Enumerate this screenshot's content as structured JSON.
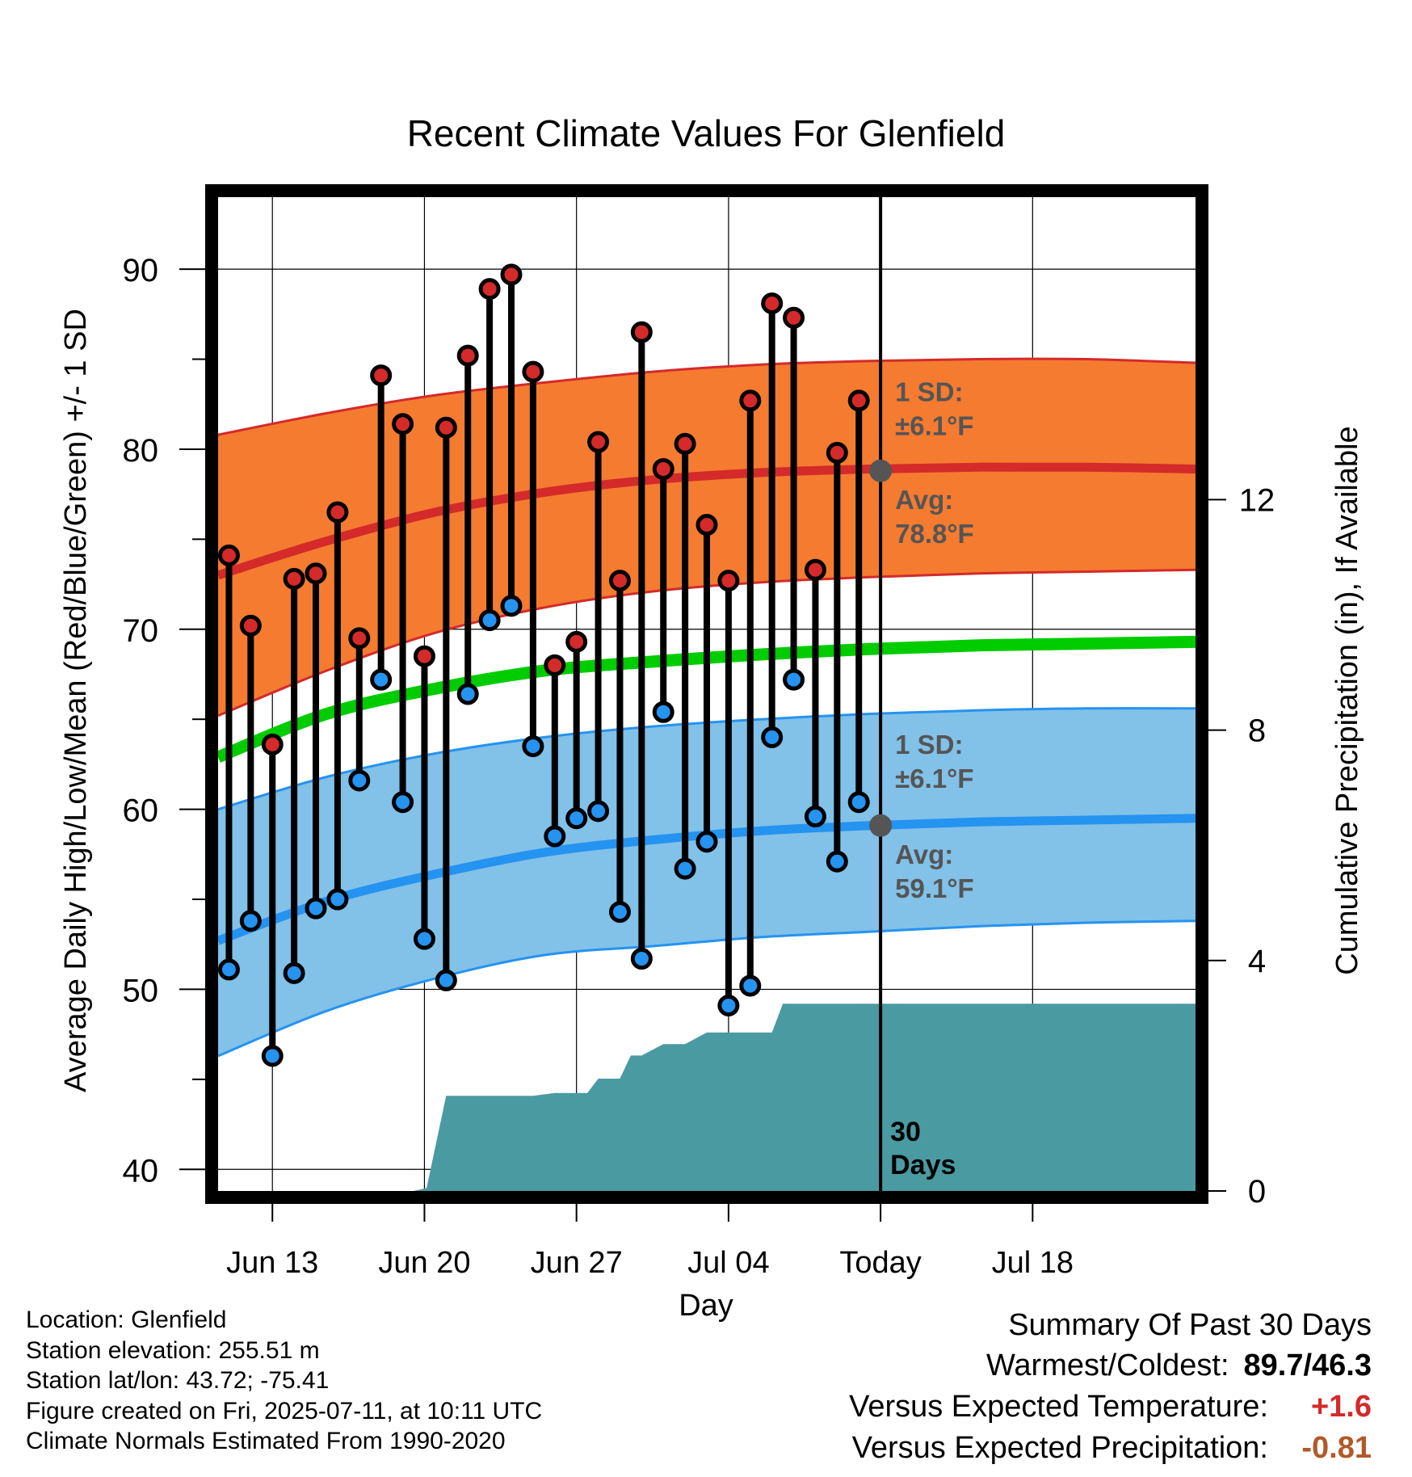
{
  "title": "Recent Climate Values For Glenfield",
  "colors": {
    "high_marker": "#d42a2a",
    "low_marker": "#2593f0",
    "normal_high_band": "#f47b30",
    "normal_high_edge": "#d42a2a",
    "normal_low_band": "#82c1e8",
    "normal_low_edge": "#2593f0",
    "normal_mean_line": "#00cc00",
    "precip_area": "#4a9aa2",
    "avg_label": "#555555",
    "positive_anomaly": "#d42a2a",
    "negative_anomaly": "#b05a28"
  },
  "chart_data": {
    "type": "line",
    "title": "Recent Climate Values For Glenfield",
    "xlabel": "Day",
    "ylabel": "Average Daily High/Low/Mean (Red/Blue/Green) +/- 1 SD",
    "y2label": "Cumulative Precipitation (in), If Available",
    "x_unit": "days relative to today",
    "xlim": [
      -30.5,
      14.5
    ],
    "ylim": [
      38.8,
      94
    ],
    "y2lim": [
      0,
      17.25
    ],
    "yticks": [
      40,
      50,
      60,
      70,
      80,
      90
    ],
    "y2ticks": [
      0,
      4,
      8,
      12
    ],
    "y2ticklabels": [
      "0",
      "4",
      "8",
      "12"
    ],
    "xticks": [
      {
        "x": -28,
        "label": "Jun 13"
      },
      {
        "x": -21,
        "label": "Jun 20"
      },
      {
        "x": -14,
        "label": "Jun 27"
      },
      {
        "x": -7,
        "label": "Jul 04"
      },
      {
        "x": 0,
        "label": "Today"
      },
      {
        "x": 7,
        "label": "Jul 18"
      }
    ],
    "grid": true,
    "today_marker": {
      "x": 0,
      "label_line1": "30",
      "label_line2": "Days"
    },
    "daily_observations": {
      "x": [
        -30,
        -29,
        -28,
        -27,
        -26,
        -25,
        -24,
        -23,
        -22,
        -21,
        -20,
        -19,
        -18,
        -17,
        -16,
        -15,
        -14,
        -13,
        -12,
        -11,
        -10,
        -9,
        -8,
        -7,
        -6,
        -5,
        -4,
        -3,
        -2,
        -1
      ],
      "high": [
        74.1,
        70.2,
        63.6,
        72.8,
        73.1,
        76.5,
        69.5,
        84.1,
        81.4,
        68.5,
        81.2,
        85.2,
        88.9,
        89.7,
        84.3,
        68.0,
        69.3,
        80.4,
        72.7,
        86.5,
        78.9,
        80.3,
        75.8,
        72.7,
        82.7,
        88.1,
        87.3,
        73.3,
        79.8,
        82.7
      ],
      "low": [
        51.1,
        53.8,
        46.3,
        50.9,
        54.5,
        55.0,
        61.6,
        67.2,
        60.4,
        52.8,
        50.5,
        66.4,
        70.5,
        71.3,
        63.5,
        58.5,
        59.5,
        59.9,
        54.3,
        51.7,
        65.4,
        56.7,
        58.2,
        49.1,
        50.2,
        64.0,
        67.2,
        59.6,
        57.1,
        60.4
      ]
    },
    "normals": {
      "x": [
        -30.5,
        -25.5,
        -20.5,
        -15.5,
        -10.5,
        -5.5,
        -0.5,
        4.5,
        9.5,
        14.5
      ],
      "high_mean": [
        73.0,
        74.9,
        76.5,
        77.6,
        78.3,
        78.7,
        78.9,
        79.0,
        79.0,
        78.9
      ],
      "high_plus_sd": [
        80.8,
        82.0,
        83.0,
        83.7,
        84.3,
        84.7,
        84.9,
        85.0,
        85.0,
        84.8
      ],
      "high_minus_sd": [
        65.2,
        67.7,
        69.8,
        71.2,
        72.1,
        72.6,
        72.9,
        73.1,
        73.2,
        73.3
      ],
      "mean": [
        62.9,
        65.3,
        66.7,
        67.7,
        68.2,
        68.6,
        68.9,
        69.1,
        69.2,
        69.3
      ],
      "low_mean": [
        52.7,
        54.9,
        56.4,
        57.6,
        58.3,
        58.8,
        59.1,
        59.3,
        59.4,
        59.5
      ],
      "low_plus_sd": [
        60.0,
        61.8,
        63.1,
        64.0,
        64.6,
        65.0,
        65.3,
        65.5,
        65.6,
        65.6
      ],
      "low_minus_sd": [
        46.3,
        48.8,
        50.6,
        51.9,
        52.4,
        52.9,
        53.2,
        53.5,
        53.7,
        53.8
      ]
    },
    "normal_annotations": [
      {
        "text_line1": "1 SD:",
        "text_line2": "±6.1°F",
        "y": 82.5
      },
      {
        "text_line1": "Avg:",
        "text_line2": "78.8°F",
        "y": 76.5,
        "marker_y": 78.8
      },
      {
        "text_line1": "1 SD:",
        "text_line2": "±6.1°F",
        "y": 62.9
      },
      {
        "text_line1": "Avg:",
        "text_line2": "59.1°F",
        "y": 56.8,
        "marker_y": 59.1
      }
    ],
    "cumulative_precip": {
      "x": [
        -30.5,
        -21.5,
        -20.9,
        -20,
        -19,
        -18,
        -17,
        -16,
        -15,
        -14,
        -13.5,
        -13,
        -12,
        -11.5,
        -11,
        -10,
        -9.5,
        -9,
        -8,
        -7.5,
        -7,
        -6,
        -5,
        -4.5,
        -4,
        0,
        14.5
      ],
      "y": [
        0,
        0,
        0.05,
        1.65,
        1.65,
        1.65,
        1.65,
        1.65,
        1.7,
        1.7,
        1.7,
        1.95,
        1.95,
        2.35,
        2.35,
        2.55,
        2.55,
        2.55,
        2.75,
        2.75,
        2.75,
        2.75,
        2.75,
        3.25,
        3.25,
        3.25,
        3.25
      ]
    }
  },
  "metadata": {
    "location": "Location: Glenfield",
    "elevation": "Station elevation: 255.51 m",
    "latlon": "Station lat/lon: 43.72; -75.41",
    "created": "Figure created on Fri, 2025-07-11, at 10:11 UTC",
    "normals": "Climate Normals Estimated From 1990-2020"
  },
  "summary": {
    "title": "Summary Of Past 30 Days",
    "warmest_coldest_label": "Warmest/Coldest:",
    "warmest_coldest_value": "89.7/46.3",
    "temp_label": "Versus Expected Temperature:",
    "temp_value": "+1.6",
    "precip_label": "Versus Expected Precipitation:",
    "precip_value": "-0.81"
  }
}
